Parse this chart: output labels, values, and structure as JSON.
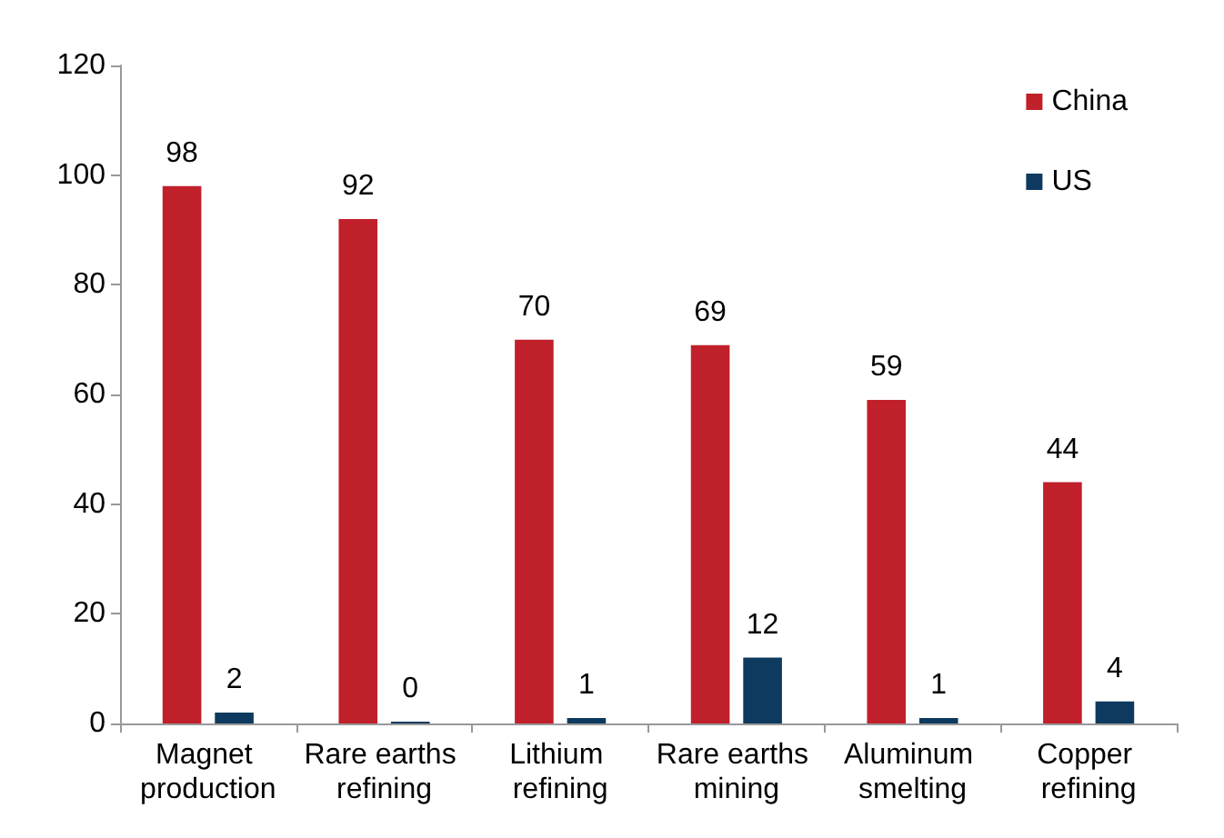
{
  "chart_data": {
    "type": "bar",
    "categories": [
      "Magnet production",
      "Rare earths refining",
      "Lithium refining",
      "Rare earths mining",
      "Aluminum smelting",
      "Copper refining"
    ],
    "series": [
      {
        "name": "China",
        "color": "#c0202a",
        "values": [
          98,
          92,
          70,
          69,
          59,
          44
        ]
      },
      {
        "name": "US",
        "color": "#0d3a5e",
        "values": [
          2,
          0,
          1,
          12,
          1,
          4
        ]
      }
    ],
    "ylim": [
      0,
      120
    ],
    "yticks": [
      0,
      20,
      40,
      60,
      80,
      100,
      120
    ],
    "grid": false,
    "legend": "top right",
    "data_labels": true
  }
}
